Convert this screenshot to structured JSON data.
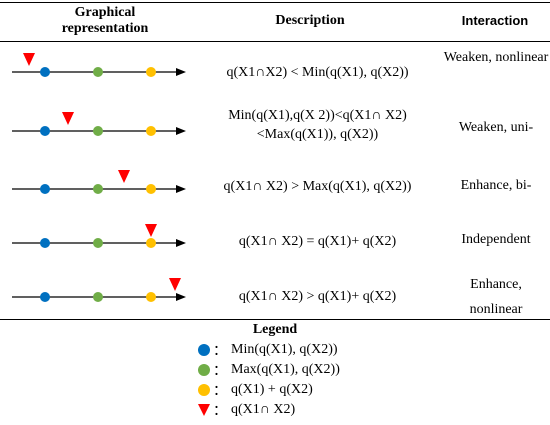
{
  "headers": {
    "graphical": "Graphical representation",
    "description": "Description",
    "interaction": "Interaction"
  },
  "rows": [
    {
      "description": "q(X1∩X2) < Min(q(X1), q(X2))",
      "interaction": "Weaken, nonlinear",
      "marker_level": 0
    },
    {
      "description": "Min(q(X1),q(X 2))<q(X1∩ X2) <Max(q(X1)), q(X2))",
      "interaction": "Weaken, uni-",
      "marker_level": 1
    },
    {
      "description": "q(X1∩ X2) > Max(q(X1), q(X2))",
      "interaction": "Enhance, bi-",
      "marker_level": 2
    },
    {
      "description": "q(X1∩ X2) = q(X1)+ q(X2)",
      "interaction": "Independent",
      "marker_level": 3
    },
    {
      "description": "q(X1∩ X2) > q(X1)+ q(X2)",
      "interaction": "Enhance, nonlinear",
      "marker_level": 4
    }
  ],
  "legend": {
    "title": "Legend",
    "items": [
      {
        "symbol": "dot",
        "color": "#0070c0",
        "colon": "：",
        "label": "Min(q(X1), q(X2))"
      },
      {
        "symbol": "dot",
        "color": "#70ad47",
        "colon": "：",
        "label": "Max(q(X1), q(X2))"
      },
      {
        "symbol": "dot",
        "color": "#ffc000",
        "colon": "：",
        "label": "q(X1) + q(X2)"
      },
      {
        "symbol": "triangle",
        "color": "#ff0000",
        "colon": "：",
        "label": "q(X1∩ X2)"
      }
    ]
  },
  "colors": {
    "min": "#0070c0",
    "max": "#70ad47",
    "sum": "#ffc000",
    "intersection": "#ff0000"
  }
}
